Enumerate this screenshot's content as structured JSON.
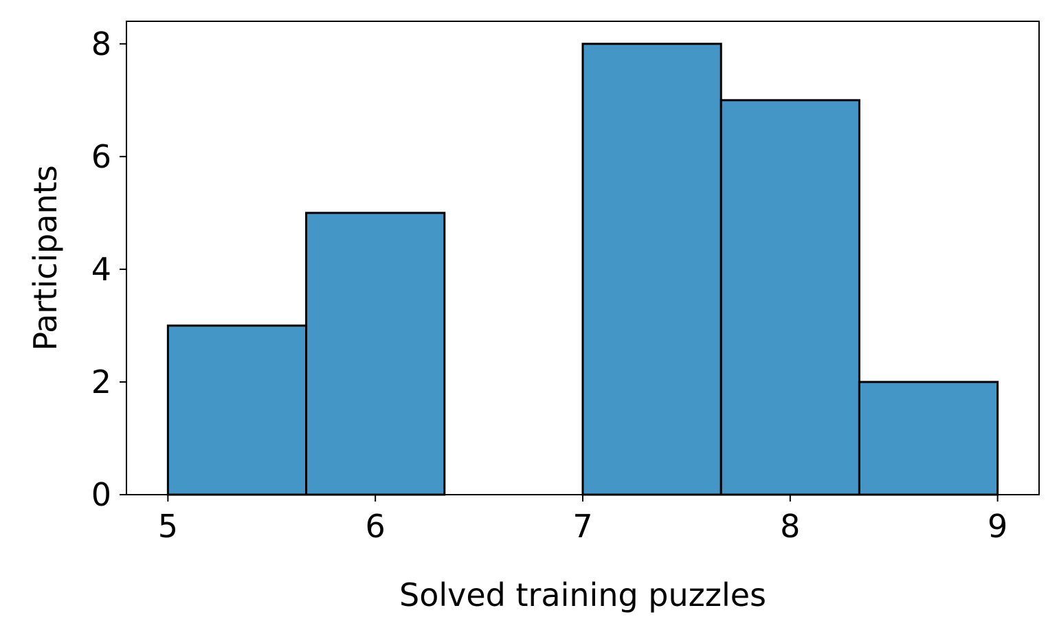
{
  "chart_data": {
    "type": "bar",
    "subtype": "histogram",
    "title": "",
    "xlabel": "Solved training puzzles",
    "ylabel": "Participants",
    "bins": [
      {
        "start": 5.0,
        "end": 5.6667,
        "count": 3
      },
      {
        "start": 5.6667,
        "end": 6.3333,
        "count": 5
      },
      {
        "start": 6.3333,
        "end": 7.0,
        "count": 0
      },
      {
        "start": 7.0,
        "end": 7.6667,
        "count": 8
      },
      {
        "start": 7.6667,
        "end": 8.3333,
        "count": 7
      },
      {
        "start": 8.3333,
        "end": 9.0,
        "count": 2
      }
    ],
    "xlim": [
      4.8,
      9.2
    ],
    "ylim": [
      0,
      8.4
    ],
    "xticks": [
      5,
      6,
      7,
      8,
      9
    ],
    "xtick_labels": [
      "5",
      "6",
      "7",
      "8",
      "9"
    ],
    "yticks": [
      0,
      2,
      4,
      6,
      8
    ],
    "ytick_labels": [
      "0",
      "2",
      "4",
      "6",
      "8"
    ],
    "grid": false,
    "legend": "none",
    "colors": {
      "bar_fill": "#4396c6",
      "bar_edge": "#000000",
      "axis": "#000000"
    }
  }
}
